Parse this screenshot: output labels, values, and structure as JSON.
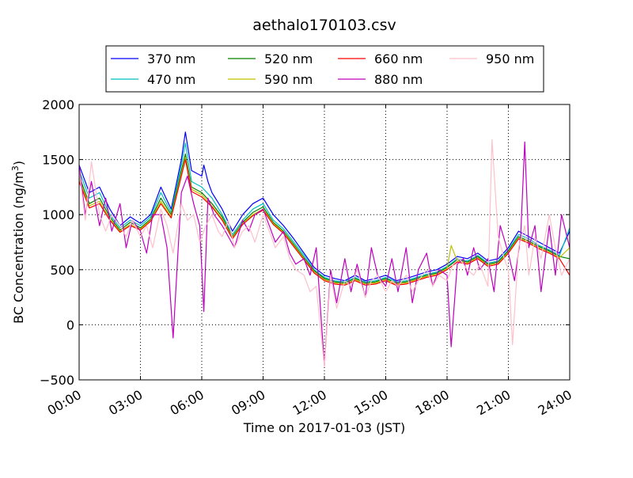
{
  "chart_data": {
    "type": "line",
    "title": "aethalo170103.csv",
    "xlabel": "Time on 2017-01-03 (JST)",
    "ylabel_main": "BC Concentration (ng/m",
    "ylabel_sup": "3",
    "ylabel_end": ")",
    "xlim_hours": [
      0,
      24
    ],
    "ylim": [
      -500,
      2000
    ],
    "x_ticks": [
      {
        "hour": 0,
        "label": "00:00"
      },
      {
        "hour": 3,
        "label": "03:00"
      },
      {
        "hour": 6,
        "label": "06:00"
      },
      {
        "hour": 9,
        "label": "09:00"
      },
      {
        "hour": 12,
        "label": "12:00"
      },
      {
        "hour": 15,
        "label": "15:00"
      },
      {
        "hour": 18,
        "label": "18:00"
      },
      {
        "hour": 21,
        "label": "21:00"
      },
      {
        "hour": 24,
        "label": "24:00"
      }
    ],
    "y_ticks": [
      {
        "value": -500,
        "label": "−500"
      },
      {
        "value": 0,
        "label": "0"
      },
      {
        "value": 500,
        "label": "500"
      },
      {
        "value": 1000,
        "label": "1000"
      },
      {
        "value": 1500,
        "label": "1500"
      },
      {
        "value": 2000,
        "label": "2000"
      }
    ],
    "grid": true,
    "legend_placement": "top-center",
    "series": [
      {
        "name": "370 nm",
        "color": "#0000ff",
        "x": [
          0,
          0.5,
          1,
          1.5,
          2,
          2.5,
          3,
          3.5,
          4,
          4.5,
          5,
          5.2,
          5.5,
          6,
          6.1,
          6.3,
          6.5,
          7,
          7.5,
          8,
          8.5,
          9,
          9.5,
          10,
          10.5,
          11,
          11.5,
          12,
          12.5,
          13,
          13.5,
          14,
          14.5,
          15,
          15.5,
          16,
          16.5,
          17,
          17.5,
          18,
          18.5,
          19,
          19.5,
          20,
          20.5,
          21,
          21.5,
          22,
          22.5,
          23,
          23.5,
          24
        ],
        "y": [
          1450,
          1200,
          1250,
          1050,
          900,
          980,
          920,
          1000,
          1250,
          1050,
          1500,
          1750,
          1400,
          1350,
          1450,
          1300,
          1200,
          1050,
          850,
          1000,
          1100,
          1150,
          1000,
          900,
          780,
          650,
          520,
          450,
          420,
          400,
          450,
          400,
          420,
          450,
          400,
          420,
          450,
          480,
          500,
          550,
          620,
          600,
          650,
          580,
          600,
          700,
          850,
          800,
          750,
          700,
          650,
          850
        ]
      },
      {
        "name": "470 nm",
        "color": "#00bfbf",
        "x": [
          0,
          0.5,
          1,
          1.5,
          2,
          2.5,
          3,
          3.5,
          4,
          4.5,
          5,
          5.2,
          5.5,
          6,
          6.5,
          7,
          7.5,
          8,
          8.5,
          9,
          9.5,
          10,
          10.5,
          11,
          11.5,
          12,
          12.5,
          13,
          13.5,
          14,
          14.5,
          15,
          15.5,
          16,
          16.5,
          17,
          17.5,
          18,
          18.5,
          19,
          19.5,
          20,
          20.5,
          21,
          21.5,
          22,
          22.5,
          23,
          23.5,
          24
        ],
        "y": [
          1400,
          1150,
          1200,
          1000,
          880,
          950,
          900,
          980,
          1200,
          1020,
          1450,
          1650,
          1300,
          1250,
          1150,
          1000,
          820,
          950,
          1050,
          1100,
          950,
          870,
          750,
          630,
          500,
          430,
          400,
          390,
          430,
          390,
          400,
          430,
          390,
          400,
          430,
          460,
          480,
          530,
          600,
          580,
          630,
          560,
          580,
          680,
          820,
          780,
          720,
          680,
          630,
          880
        ]
      },
      {
        "name": "520 nm",
        "color": "#008000",
        "x": [
          0,
          0.5,
          1,
          1.5,
          2,
          2.5,
          3,
          3.5,
          4,
          4.5,
          5,
          5.2,
          5.5,
          6,
          6.5,
          7,
          7.5,
          8,
          8.5,
          9,
          9.5,
          10,
          10.5,
          11,
          11.5,
          12,
          12.5,
          13,
          13.5,
          14,
          14.5,
          15,
          15.5,
          16,
          16.5,
          17,
          17.5,
          18,
          18.5,
          19,
          19.5,
          20,
          20.5,
          21,
          21.5,
          22,
          22.5,
          23,
          23.5,
          24
        ],
        "y": [
          1350,
          1100,
          1150,
          980,
          860,
          930,
          880,
          960,
          1150,
          1000,
          1400,
          1550,
          1250,
          1200,
          1100,
          980,
          800,
          930,
          1020,
          1070,
          930,
          850,
          730,
          610,
          490,
          420,
          390,
          380,
          420,
          380,
          390,
          420,
          380,
          390,
          420,
          450,
          470,
          520,
          590,
          570,
          620,
          550,
          570,
          670,
          800,
          760,
          710,
          670,
          620,
          600
        ]
      },
      {
        "name": "590 nm",
        "color": "#bfbf00",
        "x": [
          0,
          0.5,
          1,
          1.5,
          2,
          2.5,
          3,
          3.5,
          4,
          4.5,
          5,
          5.2,
          5.5,
          6,
          6.5,
          7,
          7.5,
          8,
          8.5,
          9,
          9.5,
          10,
          10.5,
          11,
          11.5,
          12,
          12.5,
          13,
          13.5,
          14,
          14.5,
          15,
          15.5,
          16,
          16.5,
          17,
          17.5,
          18,
          18.2,
          18.5,
          19,
          19.5,
          20,
          20.5,
          21,
          21.5,
          22,
          22.5,
          23,
          23.5,
          24
        ],
        "y": [
          1320,
          1080,
          1120,
          960,
          850,
          910,
          870,
          950,
          1120,
          980,
          1370,
          1520,
          1230,
          1180,
          1080,
          960,
          790,
          920,
          1000,
          1050,
          920,
          840,
          720,
          600,
          480,
          410,
          380,
          370,
          410,
          370,
          380,
          410,
          370,
          380,
          410,
          440,
          460,
          510,
          720,
          580,
          560,
          610,
          540,
          560,
          660,
          790,
          750,
          700,
          660,
          610,
          700
        ]
      },
      {
        "name": "660 nm",
        "color": "#ff0000",
        "x": [
          0,
          0.5,
          1,
          1.5,
          2,
          2.5,
          3,
          3.5,
          4,
          4.5,
          5,
          5.2,
          5.5,
          6,
          6.5,
          7,
          7.5,
          8,
          8.5,
          9,
          9.5,
          10,
          10.5,
          11,
          11.5,
          12,
          12.5,
          13,
          13.5,
          14,
          14.5,
          15,
          15.5,
          16,
          16.5,
          17,
          17.5,
          18,
          18.5,
          19,
          19.5,
          20,
          20.5,
          21,
          21.5,
          22,
          22.5,
          23,
          23.5,
          24
        ],
        "y": [
          1300,
          1060,
          1100,
          950,
          840,
          900,
          860,
          940,
          1100,
          970,
          1350,
          1500,
          1210,
          1160,
          1070,
          950,
          780,
          910,
          990,
          1040,
          910,
          830,
          710,
          590,
          470,
          400,
          370,
          360,
          400,
          360,
          370,
          400,
          360,
          370,
          400,
          430,
          450,
          500,
          570,
          550,
          600,
          530,
          550,
          650,
          780,
          740,
          690,
          650,
          600,
          450
        ]
      },
      {
        "name": "880 nm",
        "color": "#bf00bf",
        "x": [
          0,
          0.3,
          0.6,
          1,
          1.3,
          1.6,
          2,
          2.3,
          2.6,
          3,
          3.3,
          3.6,
          4,
          4.3,
          4.6,
          5,
          5.3,
          5.6,
          5.9,
          6.1,
          6.3,
          6.6,
          7,
          7.3,
          7.6,
          8,
          8.3,
          8.6,
          9,
          9.3,
          9.6,
          10,
          10.3,
          10.6,
          11,
          11.3,
          11.6,
          12,
          12.3,
          12.6,
          13,
          13.3,
          13.6,
          14,
          14.3,
          14.6,
          15,
          15.3,
          15.6,
          16,
          16.3,
          16.6,
          17,
          17.3,
          17.6,
          18,
          18.2,
          18.5,
          18.8,
          19,
          19.3,
          19.6,
          20,
          20.3,
          20.6,
          21,
          21.3,
          21.6,
          21.8,
          22,
          22.3,
          22.6,
          23,
          23.3,
          23.6,
          24
        ],
        "y": [
          1450,
          1000,
          1300,
          900,
          1150,
          850,
          1100,
          700,
          950,
          850,
          650,
          1000,
          1000,
          700,
          -120,
          1200,
          1350,
          1100,
          900,
          120,
          1150,
          1000,
          900,
          800,
          700,
          950,
          850,
          1000,
          1050,
          900,
          750,
          850,
          650,
          550,
          600,
          450,
          700,
          -370,
          500,
          200,
          600,
          300,
          550,
          250,
          700,
          450,
          350,
          600,
          300,
          700,
          200,
          500,
          650,
          350,
          500,
          450,
          -200,
          550,
          600,
          450,
          700,
          500,
          600,
          300,
          900,
          650,
          400,
          800,
          1660,
          700,
          900,
          300,
          900,
          450,
          1000,
          700
        ]
      },
      {
        "name": "950 nm",
        "color": "#ffc0cb",
        "x": [
          0,
          0.3,
          0.6,
          1,
          1.3,
          1.6,
          2,
          2.3,
          2.6,
          3,
          3.3,
          3.6,
          4,
          4.3,
          4.6,
          5,
          5.3,
          5.6,
          5.9,
          6.2,
          6.5,
          6.8,
          7,
          7.3,
          7.6,
          8,
          8.3,
          8.6,
          9,
          9.3,
          9.6,
          10,
          10.3,
          10.6,
          11,
          11.3,
          11.6,
          12,
          12.3,
          12.6,
          13,
          13.3,
          13.6,
          14,
          14.3,
          14.6,
          15,
          15.3,
          15.6,
          16,
          16.3,
          16.6,
          17,
          17.3,
          17.6,
          18,
          18.3,
          18.6,
          19,
          19.3,
          19.6,
          20,
          20.2,
          20.5,
          20.8,
          21,
          21.2,
          21.5,
          21.8,
          22,
          22.3,
          22.6,
          23,
          23.3,
          23.6,
          24
        ],
        "y": [
          1400,
          950,
          1480,
          1000,
          850,
          1000,
          900,
          800,
          950,
          800,
          900,
          700,
          1050,
          900,
          650,
          1100,
          950,
          1000,
          750,
          900,
          1000,
          850,
          800,
          950,
          700,
          850,
          900,
          750,
          1000,
          850,
          700,
          800,
          600,
          500,
          450,
          300,
          350,
          -380,
          450,
          150,
          400,
          350,
          500,
          250,
          400,
          450,
          300,
          400,
          350,
          450,
          300,
          400,
          500,
          350,
          450,
          400,
          550,
          600,
          500,
          450,
          550,
          350,
          1680,
          800,
          600,
          500,
          -180,
          700,
          900,
          450,
          800,
          600,
          1000,
          700,
          450,
          600
        ]
      }
    ]
  }
}
